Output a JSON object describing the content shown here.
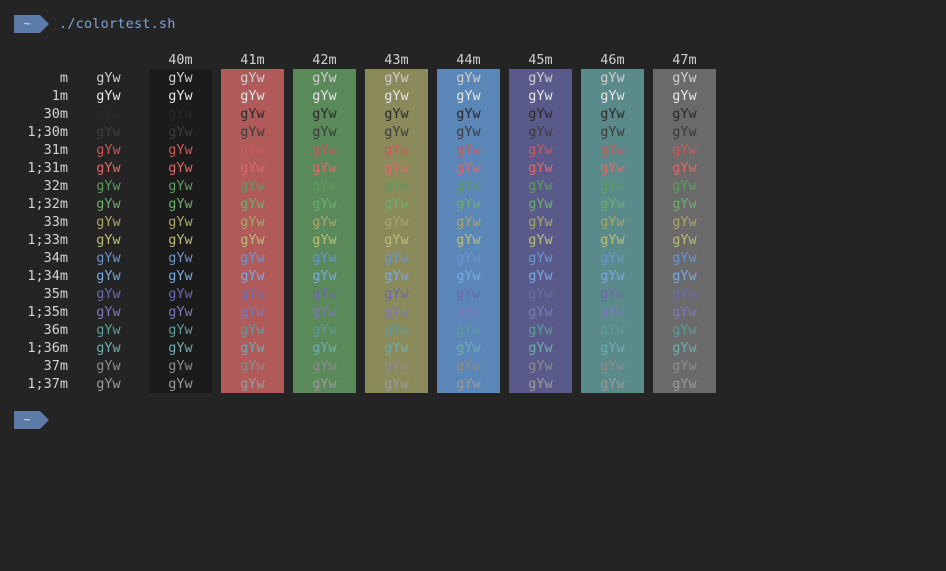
{
  "prompt1": {
    "badge": "~",
    "command": "./colortest.sh"
  },
  "prompt2": {
    "badge": "~"
  },
  "sample": "gYw",
  "row_labels": [
    "m",
    "1m",
    "30m",
    "1;30m",
    "31m",
    "1;31m",
    "32m",
    "1;32m",
    "33m",
    "1;33m",
    "34m",
    "1;34m",
    "35m",
    "1;35m",
    "36m",
    "1;36m",
    "37m",
    "1;37m"
  ],
  "fg_colors": [
    "#cfcfcf",
    "#e6e6e6",
    "#2a2a2a",
    "#3c3c3c",
    "#c75a5a",
    "#dc6a6a",
    "#5f9b5f",
    "#6fae6f",
    "#a7a66b",
    "#bdbd7a",
    "#6a96cf",
    "#7aa8e0",
    "#6a6aa8",
    "#7a7ab8",
    "#5f9a9a",
    "#70adad",
    "#8c8c8c",
    "#9a9a9a"
  ],
  "bg_headers": [
    "40m",
    "41m",
    "42m",
    "43m",
    "44m",
    "45m",
    "46m",
    "47m"
  ],
  "bg_colors": [
    "#1b1b1b",
    "#b05a5a",
    "#5a8a5a",
    "#8a8a5a",
    "#5a87b8",
    "#5a5a8a",
    "#5a8a8a",
    "#6a6a6a"
  ]
}
